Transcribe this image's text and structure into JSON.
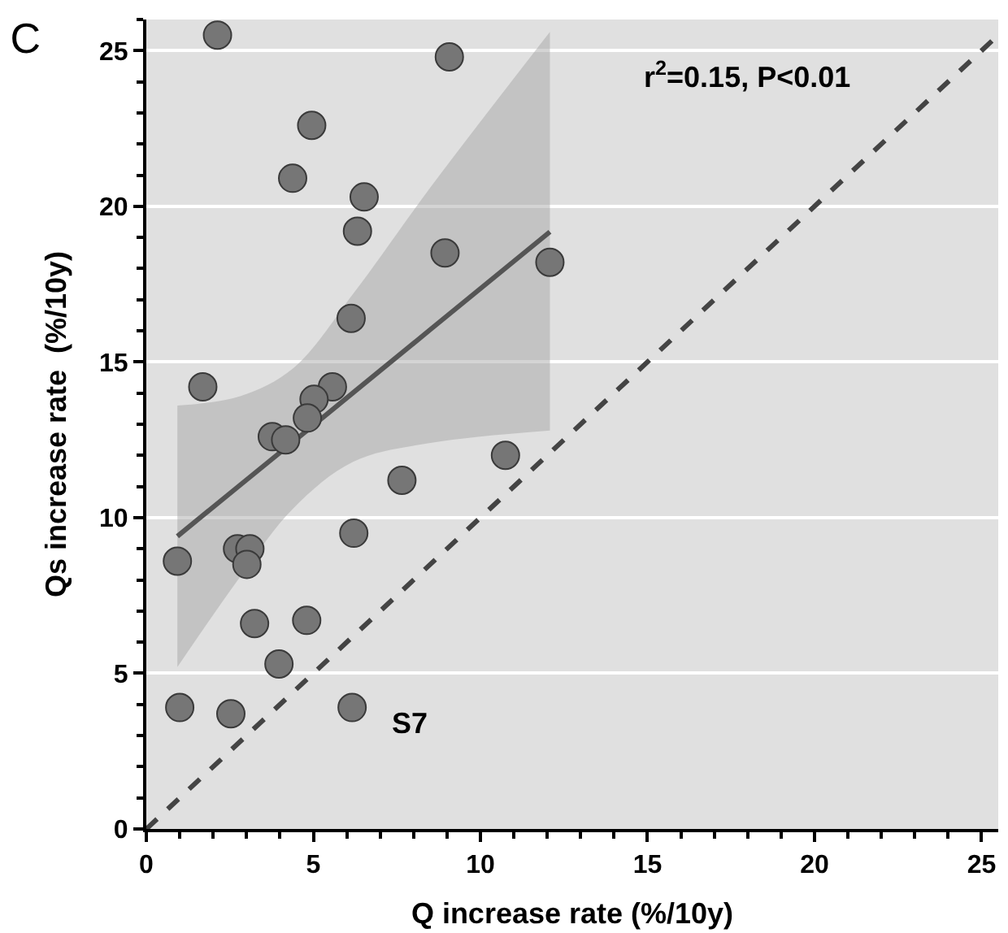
{
  "chart_data": {
    "type": "scatter",
    "title": "C",
    "xlabel": "Q increase rate (%/10y)",
    "ylabel": "Qs increase rate  (%/10y)",
    "xlim": [
      0,
      25.5
    ],
    "ylim": [
      0,
      26
    ],
    "xticks": [
      0,
      5,
      10,
      15,
      20,
      25
    ],
    "yticks": [
      0,
      5,
      10,
      15,
      20,
      25
    ],
    "grid": "y",
    "marker": "circle",
    "series": [
      {
        "color": "#767676",
        "x": [
          2.13,
          9.07,
          4.95,
          4.38,
          6.52,
          6.32,
          8.94,
          12.08,
          6.13,
          1.69,
          5.57,
          5.02,
          4.82,
          3.77,
          4.17,
          10.75,
          7.65,
          6.21,
          2.73,
          3.1,
          3.01,
          0.93,
          3.24,
          4.8,
          3.97,
          1.0,
          2.53,
          6.16
        ],
        "values": [
          25.5,
          24.8,
          22.6,
          20.9,
          20.3,
          19.2,
          18.5,
          18.2,
          16.4,
          14.2,
          14.2,
          13.8,
          13.2,
          12.6,
          12.5,
          12.0,
          11.2,
          9.5,
          9.0,
          9.0,
          8.5,
          8.6,
          6.6,
          6.7,
          5.3,
          3.9,
          3.7,
          3.9
        ]
      },
      {
        "type": "line",
        "color": "#555555",
        "marker": "none",
        "line_style": "solid",
        "x": [
          0.93,
          2.81,
          4.4,
          6.2,
          8.5,
          12.08
        ],
        "values": [
          9.4,
          11.05,
          12.44,
          14.02,
          16.04,
          19.18
        ],
        "lower": [
          5.2,
          8.1,
          10.3,
          11.8,
          12.4,
          12.8
        ],
        "upper": [
          13.6,
          13.9,
          14.8,
          17.2,
          20.6,
          25.6
        ]
      },
      {
        "type": "line",
        "color": "#444444",
        "marker": "none",
        "line_style": "dashed",
        "x": [
          0,
          25.5
        ],
        "values": [
          0,
          25.5
        ]
      }
    ],
    "annotations": [
      "r$^{2}$=0.15, P<0.01",
      {
        "text": "S7",
        "x": 6.16,
        "y": 3.9
      }
    ]
  }
}
